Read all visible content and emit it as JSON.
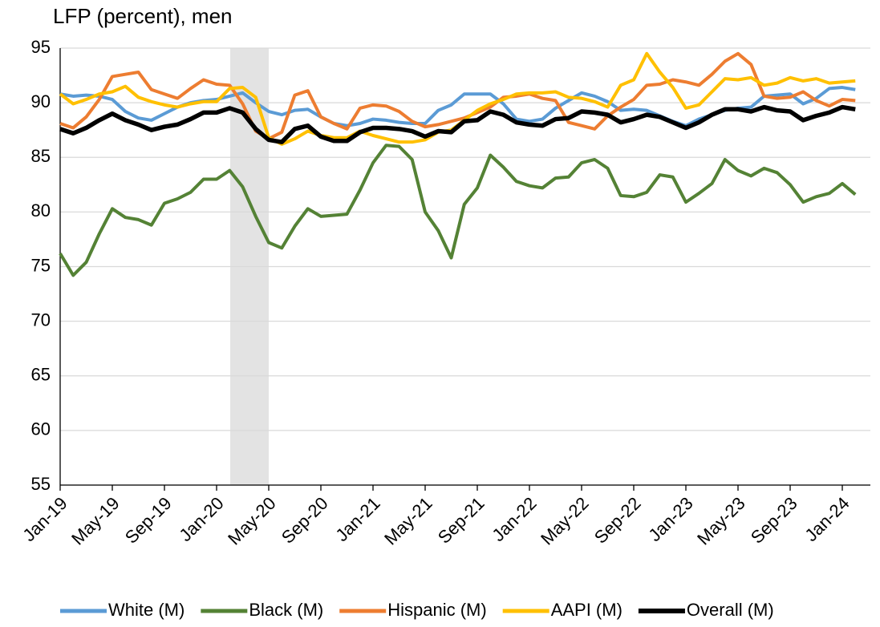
{
  "chart_data": {
    "type": "line",
    "title": "LFP (percent), men",
    "categories": [
      "Jan-19",
      null,
      null,
      null,
      "May-19",
      null,
      null,
      null,
      "Sep-19",
      null,
      null,
      null,
      "Jan-20",
      null,
      null,
      null,
      "May-20",
      null,
      null,
      null,
      "Sep-20",
      null,
      null,
      null,
      "Jan-21",
      null,
      null,
      null,
      "May-21",
      null,
      null,
      null,
      "Sep-21",
      null,
      null,
      null,
      "Jan-22",
      null,
      null,
      null,
      "May-22",
      null,
      null,
      null,
      "Sep-22",
      null,
      null,
      null,
      "Jan-23",
      null,
      null,
      null,
      "May-23",
      null,
      null,
      null,
      "Sep-23",
      null,
      null,
      null,
      "Jan-24",
      null
    ],
    "ylim": [
      55,
      95
    ],
    "yticks": [
      55,
      60,
      65,
      70,
      75,
      80,
      85,
      90,
      95
    ],
    "grid": true,
    "legend": "bottom",
    "series": [
      {
        "name": "White (M)",
        "color": "#5b9bd5",
        "values": [
          90.8,
          90.6,
          90.7,
          90.6,
          90.3,
          89.2,
          88.6,
          88.4,
          89,
          89.6,
          90,
          90.2,
          90.3,
          90.6,
          90.9,
          90,
          89.2,
          88.9,
          89.3,
          89.4,
          88.7,
          88.1,
          87.9,
          88.1,
          88.5,
          88.4,
          88.2,
          88.1,
          88.1,
          89.3,
          89.8,
          90.8,
          90.8,
          90.8,
          89.9,
          88.5,
          88.3,
          88.5,
          89.5,
          90.2,
          90.9,
          90.6,
          90.1,
          89.3,
          89.4,
          89.3,
          88.8,
          88.3,
          87.9,
          88.5,
          88.9,
          89.3,
          89.5,
          89.6,
          90.6,
          90.7,
          90.8,
          89.9,
          90.4,
          91.3,
          91.4,
          91.2
        ]
      },
      {
        "name": "Black (M)",
        "color": "#548235",
        "values": [
          76.2,
          74.2,
          75.4,
          78,
          80.3,
          79.5,
          79.3,
          78.8,
          80.8,
          81.2,
          81.8,
          83,
          83,
          83.8,
          82.3,
          79.6,
          77.2,
          76.7,
          78.7,
          80.3,
          79.6,
          79.7,
          79.8,
          82,
          84.5,
          86.1,
          86,
          84.8,
          80,
          78.3,
          75.8,
          80.7,
          82.2,
          85.2,
          84.1,
          82.8,
          82.4,
          82.2,
          83.1,
          83.2,
          84.5,
          84.8,
          84,
          81.5,
          81.4,
          81.8,
          83.4,
          83.2,
          80.9,
          81.7,
          82.6,
          84.8,
          83.8,
          83.3,
          84,
          83.6,
          82.5,
          80.9,
          81.4,
          81.7,
          82.6,
          81.6
        ]
      },
      {
        "name": "Hispanic (M)",
        "color": "#ed7d31",
        "values": [
          88.1,
          87.7,
          88.7,
          90.3,
          92.4,
          92.6,
          92.8,
          91.2,
          90.8,
          90.4,
          91.3,
          92.1,
          91.7,
          91.6,
          89.9,
          87.4,
          86.7,
          87.3,
          90.7,
          91.1,
          88.7,
          88.1,
          87.6,
          89.5,
          89.8,
          89.7,
          89.2,
          88.3,
          87.8,
          88,
          88.3,
          88.6,
          89.1,
          89.6,
          90.5,
          90.6,
          90.8,
          90.4,
          90.2,
          88.2,
          87.9,
          87.6,
          88.8,
          89.6,
          90.3,
          91.6,
          91.7,
          92.1,
          91.9,
          91.6,
          92.6,
          93.8,
          94.5,
          93.5,
          90.6,
          90.4,
          90.5,
          91,
          90.2,
          89.7,
          90.3,
          90.2
        ]
      },
      {
        "name": "AAPI (M)",
        "color": "#ffc000",
        "values": [
          90.8,
          89.9,
          90.3,
          90.8,
          91,
          91.5,
          90.5,
          90.1,
          89.8,
          89.6,
          89.9,
          90.1,
          90.1,
          91.3,
          91.4,
          90.5,
          86.8,
          86.2,
          86.7,
          87.4,
          87,
          86.8,
          86.8,
          87.4,
          87,
          86.7,
          86.4,
          86.4,
          86.6,
          87.3,
          87.5,
          88.4,
          89.3,
          89.9,
          90.3,
          90.8,
          90.9,
          90.9,
          91,
          90.5,
          90.4,
          90.1,
          89.6,
          91.6,
          92.1,
          94.5,
          92.8,
          91.4,
          89.5,
          89.8,
          91,
          92.2,
          92.1,
          92.3,
          91.6,
          91.8,
          92.3,
          92,
          92.2,
          91.8,
          91.9,
          92
        ]
      },
      {
        "name": "Overall (M)",
        "color": "#000000",
        "values": [
          87.6,
          87.2,
          87.7,
          88.4,
          89,
          88.4,
          88,
          87.5,
          87.8,
          88,
          88.5,
          89.1,
          89.1,
          89.5,
          89.1,
          87.6,
          86.6,
          86.4,
          87.6,
          87.9,
          86.9,
          86.5,
          86.5,
          87.3,
          87.7,
          87.7,
          87.6,
          87.4,
          86.9,
          87.4,
          87.3,
          88.3,
          88.4,
          89.2,
          88.9,
          88.2,
          88,
          87.9,
          88.5,
          88.6,
          89.2,
          89.1,
          88.9,
          88.2,
          88.5,
          88.9,
          88.7,
          88.2,
          87.7,
          88.2,
          88.9,
          89.4,
          89.4,
          89.2,
          89.6,
          89.3,
          89.2,
          88.4,
          88.8,
          89.1,
          89.6,
          89.4
        ]
      }
    ]
  }
}
